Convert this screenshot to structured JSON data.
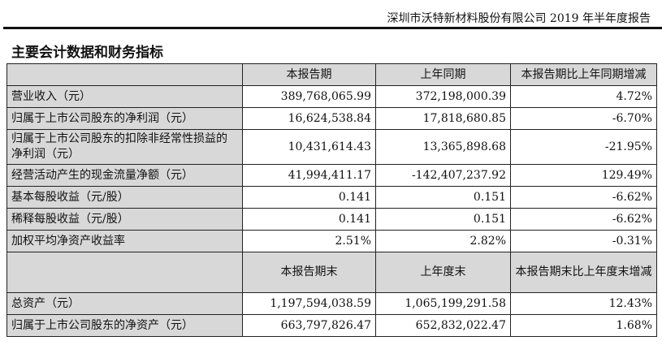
{
  "header": "深圳市沃特新材料股份有限公司 2019 年半年度报告",
  "title": "主要会计数据和财务指标",
  "table1": {
    "headers": [
      "",
      "本报告期",
      "上年同期",
      "本报告期比上年同期增减"
    ],
    "rows": [
      [
        "营业收入（元）",
        "389,768,065.99",
        "372,198,000.39",
        "4.72%"
      ],
      [
        "归属于上市公司股东的净利润（元）",
        "16,624,538.84",
        "17,818,680.85",
        "-6.70%"
      ],
      [
        "归属于上市公司股东的扣除非经常性损益的净利润（元）",
        "10,431,614.43",
        "13,365,898.68",
        "-21.95%"
      ],
      [
        "经营活动产生的现金流量净额（元）",
        "41,994,411.17",
        "-142,407,237.92",
        "129.49%"
      ],
      [
        "基本每股收益（元/股）",
        "0.141",
        "0.151",
        "-6.62%"
      ],
      [
        "稀释每股收益（元/股）",
        "0.141",
        "0.151",
        "-6.62%"
      ],
      [
        "加权平均净资产收益率",
        "2.51%",
        "2.82%",
        "-0.31%"
      ]
    ]
  },
  "table2": {
    "headers": [
      "",
      "本报告期末",
      "上年度末",
      "本报告期末比上年度末增减"
    ],
    "rows": [
      [
        "总资产（元）",
        "1,197,594,038.59",
        "1,065,199,291.58",
        "12.43%"
      ],
      [
        "归属于上市公司股东的净资产（元）",
        "663,797,826.47",
        "652,832,022.47",
        "1.68%"
      ]
    ]
  }
}
